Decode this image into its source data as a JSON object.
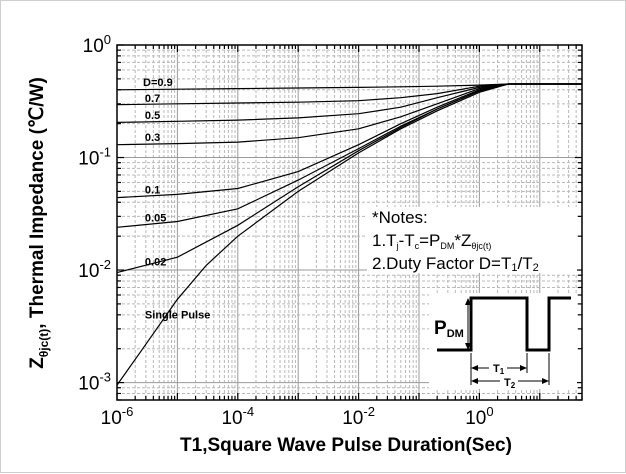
{
  "chart_data": {
    "type": "line",
    "xscale": "log",
    "yscale": "log",
    "xlim": [
      1e-06,
      50
    ],
    "ylim": [
      0.0007,
      1
    ],
    "grid": true,
    "xlabel": "T1,Square Wave Pulse Duration(Sec)",
    "ylabel_prefix": "Z",
    "ylabel_sub": "θjc(t)",
    "ylabel_main": ", Thermal Impedance (℃/W)",
    "xticks": [
      {
        "value": 1e-06,
        "base": "10",
        "exp": "-6"
      },
      {
        "value": 0.0001,
        "base": "10",
        "exp": "-4"
      },
      {
        "value": 0.01,
        "base": "10",
        "exp": "-2"
      },
      {
        "value": 1,
        "base": "10",
        "exp": "0"
      }
    ],
    "yticks": [
      {
        "value": 1,
        "base": "10",
        "exp": "0"
      },
      {
        "value": 0.1,
        "base": "10",
        "exp": "-1"
      },
      {
        "value": 0.01,
        "base": "10",
        "exp": "-2"
      },
      {
        "value": 0.001,
        "base": "10",
        "exp": "-3"
      }
    ],
    "series": [
      {
        "name": "D=0.9",
        "label_x": 2.7e-06,
        "label_y": 0.43,
        "x": [
          1e-06,
          1e-05,
          0.0001,
          0.001,
          0.01,
          0.05,
          0.2,
          1,
          3,
          50
        ],
        "y": [
          0.4,
          0.405,
          0.41,
          0.415,
          0.42,
          0.425,
          0.43,
          0.44,
          0.45,
          0.45
        ]
      },
      {
        "name": "0.7",
        "label_x": 2.9e-06,
        "label_y": 0.31,
        "x": [
          1e-06,
          1e-05,
          0.0001,
          0.001,
          0.01,
          0.05,
          0.2,
          1,
          3,
          50
        ],
        "y": [
          0.295,
          0.3,
          0.305,
          0.31,
          0.32,
          0.34,
          0.37,
          0.43,
          0.45,
          0.45
        ]
      },
      {
        "name": "0.5",
        "label_x": 2.9e-06,
        "label_y": 0.22,
        "x": [
          1e-06,
          1e-05,
          0.0001,
          0.001,
          0.01,
          0.05,
          0.2,
          1,
          3,
          50
        ],
        "y": [
          0.205,
          0.21,
          0.215,
          0.225,
          0.245,
          0.28,
          0.34,
          0.42,
          0.45,
          0.45
        ]
      },
      {
        "name": "0.3",
        "label_x": 2.9e-06,
        "label_y": 0.14,
        "x": [
          1e-06,
          1e-05,
          0.0001,
          0.001,
          0.01,
          0.05,
          0.2,
          1,
          3,
          50
        ],
        "y": [
          0.13,
          0.133,
          0.137,
          0.15,
          0.18,
          0.23,
          0.3,
          0.41,
          0.45,
          0.45
        ]
      },
      {
        "name": "0.1",
        "label_x": 2.9e-06,
        "label_y": 0.048,
        "x": [
          1e-06,
          1e-05,
          0.0001,
          0.001,
          0.01,
          0.05,
          0.2,
          1,
          3,
          50
        ],
        "y": [
          0.044,
          0.047,
          0.053,
          0.075,
          0.13,
          0.2,
          0.28,
          0.4,
          0.45,
          0.45
        ]
      },
      {
        "name": "0.05",
        "label_x": 2.9e-06,
        "label_y": 0.027,
        "x": [
          1e-06,
          1e-05,
          0.0001,
          0.001,
          0.01,
          0.05,
          0.2,
          1,
          3,
          50
        ],
        "y": [
          0.024,
          0.027,
          0.035,
          0.063,
          0.12,
          0.19,
          0.27,
          0.39,
          0.45,
          0.45
        ]
      },
      {
        "name": "0.02",
        "label_x": 2.9e-06,
        "label_y": 0.011,
        "x": [
          1e-06,
          1e-05,
          0.0001,
          0.001,
          0.01,
          0.05,
          0.2,
          1,
          3,
          50
        ],
        "y": [
          0.0095,
          0.013,
          0.025,
          0.055,
          0.115,
          0.185,
          0.27,
          0.39,
          0.45,
          0.45
        ]
      },
      {
        "name": "Single Pulse",
        "label_x": 2.9e-06,
        "label_y": 0.0037,
        "x": [
          1e-06,
          2.5e-06,
          1e-05,
          3e-05,
          0.0001,
          0.001,
          0.01,
          0.05,
          0.2,
          1,
          3,
          50
        ],
        "y": [
          0.00095,
          0.0019,
          0.0055,
          0.011,
          0.02,
          0.05,
          0.11,
          0.18,
          0.26,
          0.38,
          0.45,
          0.45
        ]
      }
    ],
    "notes": {
      "title": "*Notes:",
      "line1_a": "1.T",
      "line1_sub1": "j",
      "line1_b": "-T",
      "line1_sub2": "c",
      "line1_c": "=P",
      "line1_sub3": "DM",
      "line1_d": "*Z",
      "line1_sub4": "θjc(t)",
      "line2_a": "2.Duty Factor D=T",
      "line2_sub1": "1",
      "line2_b": "/T",
      "line2_sub2": "2"
    },
    "pulse_diagram": {
      "pdm_main": "P",
      "pdm_sub": "DM",
      "t1_label": "T",
      "t1_sub": "1",
      "t2_label": "T",
      "t2_sub": "2"
    }
  }
}
